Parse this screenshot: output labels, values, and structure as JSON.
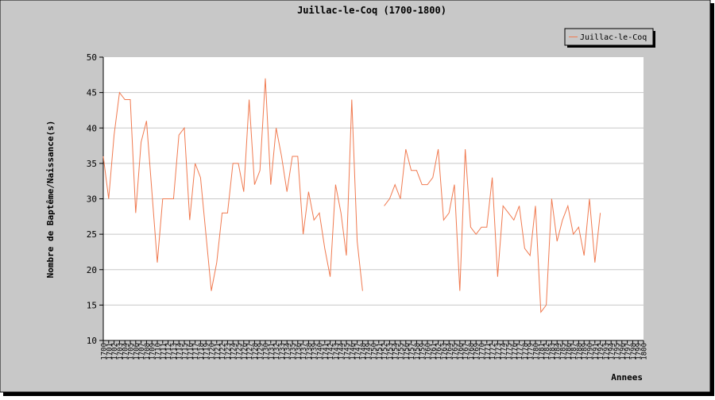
{
  "chart_data": {
    "type": "line",
    "title": "Juillac-le-Coq (1700-1800)",
    "xlabel": "Annees",
    "ylabel": "Nombre de Baptême/Naissance(s)",
    "ylim": [
      10,
      50
    ],
    "yticks": [
      10,
      15,
      20,
      25,
      30,
      35,
      40,
      45,
      50
    ],
    "xlim": [
      1700,
      1800
    ],
    "grid": true,
    "legend_position": "top-right",
    "series": [
      {
        "name": "Juillac-le-Coq",
        "color": "#f07a50",
        "points": [
          [
            1700,
            36
          ],
          [
            1701,
            30
          ],
          [
            1702,
            39
          ],
          [
            1703,
            45
          ],
          [
            1704,
            44
          ],
          [
            1705,
            44
          ],
          [
            1706,
            28
          ],
          [
            1707,
            38
          ],
          [
            1708,
            41
          ],
          [
            1709,
            31
          ],
          [
            1710,
            21
          ],
          [
            1711,
            30
          ],
          [
            1712,
            30
          ],
          [
            1713,
            30
          ],
          [
            1714,
            39
          ],
          [
            1715,
            40
          ],
          [
            1716,
            27
          ],
          [
            1717,
            35
          ],
          [
            1718,
            33
          ],
          [
            1719,
            25
          ],
          [
            1720,
            17
          ],
          [
            1721,
            21
          ],
          [
            1722,
            28
          ],
          [
            1723,
            28
          ],
          [
            1724,
            35
          ],
          [
            1725,
            35
          ],
          [
            1726,
            31
          ],
          [
            1727,
            44
          ],
          [
            1728,
            32
          ],
          [
            1729,
            34
          ],
          [
            1730,
            47
          ],
          [
            1731,
            32
          ],
          [
            1732,
            40
          ],
          [
            1733,
            36
          ],
          [
            1734,
            31
          ],
          [
            1735,
            36
          ],
          [
            1736,
            36
          ],
          [
            1737,
            25
          ],
          [
            1738,
            31
          ],
          [
            1739,
            27
          ],
          [
            1740,
            28
          ],
          [
            1741,
            23
          ],
          [
            1742,
            19
          ],
          [
            1743,
            32
          ],
          [
            1744,
            28
          ],
          [
            1745,
            22
          ],
          [
            1746,
            44
          ],
          [
            1747,
            24
          ],
          [
            1748,
            17
          ],
          null,
          null,
          null,
          [
            1752,
            29
          ],
          [
            1753,
            30
          ],
          [
            1754,
            32
          ],
          [
            1755,
            30
          ],
          [
            1756,
            37
          ],
          [
            1757,
            34
          ],
          [
            1758,
            34
          ],
          [
            1759,
            32
          ],
          [
            1760,
            32
          ],
          [
            1761,
            33
          ],
          [
            1762,
            37
          ],
          [
            1763,
            27
          ],
          [
            1764,
            28
          ],
          [
            1765,
            32
          ],
          [
            1766,
            17
          ],
          [
            1767,
            37
          ],
          [
            1768,
            26
          ],
          [
            1769,
            25
          ],
          [
            1770,
            26
          ],
          [
            1771,
            26
          ],
          [
            1772,
            33
          ],
          [
            1773,
            19
          ],
          [
            1774,
            29
          ],
          [
            1775,
            28
          ],
          [
            1776,
            27
          ],
          [
            1777,
            29
          ],
          [
            1778,
            23
          ],
          [
            1779,
            22
          ],
          [
            1780,
            29
          ],
          [
            1781,
            14
          ],
          [
            1782,
            15
          ],
          [
            1783,
            30
          ],
          [
            1784,
            24
          ],
          [
            1785,
            27
          ],
          [
            1786,
            29
          ],
          [
            1787,
            25
          ],
          [
            1788,
            26
          ],
          [
            1789,
            22
          ],
          [
            1790,
            30
          ],
          [
            1791,
            21
          ],
          [
            1792,
            28
          ]
        ]
      }
    ]
  }
}
